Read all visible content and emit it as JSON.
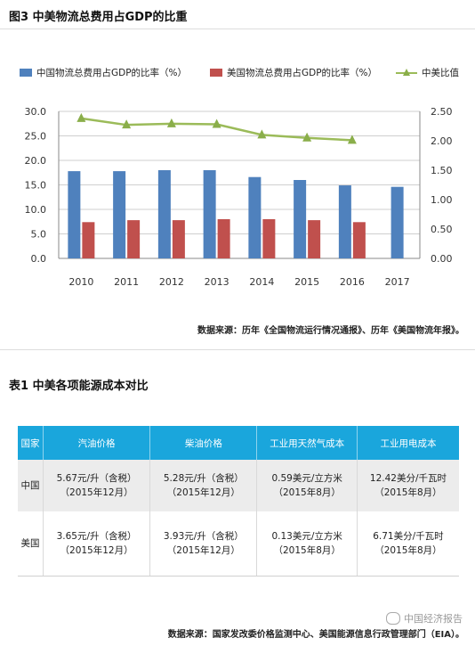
{
  "figure": {
    "title": "图3  中美物流总费用占GDP的比重"
  },
  "legend": {
    "china": "中国物流总费用占GDP的比率（%）",
    "usa": "美国物流总费用占GDP的比率（%）",
    "ratio": "中美比值"
  },
  "chart_data": {
    "type": "bar",
    "categories": [
      "2010",
      "2011",
      "2012",
      "2013",
      "2014",
      "2015",
      "2016",
      "2017"
    ],
    "series": [
      {
        "name": "中国物流总费用占GDP的比率（%）",
        "type": "bar",
        "axis": "left",
        "color": "#4f81bd",
        "values": [
          17.8,
          17.8,
          18.0,
          18.0,
          16.6,
          16.0,
          14.9,
          14.6
        ]
      },
      {
        "name": "美国物流总费用占GDP的比率（%）",
        "type": "bar",
        "axis": "left",
        "color": "#c0504d",
        "values": [
          7.4,
          7.8,
          7.8,
          8.0,
          8.0,
          7.8,
          7.4,
          null
        ]
      },
      {
        "name": "中美比值",
        "type": "line",
        "axis": "right",
        "color": "#9bbb59",
        "values": [
          2.38,
          2.27,
          2.29,
          2.28,
          2.1,
          2.05,
          2.01,
          null
        ]
      }
    ],
    "y_left": {
      "ylim": [
        0,
        30
      ],
      "ticks": [
        "0.0",
        "5.0",
        "10.0",
        "15.0",
        "20.0",
        "25.0",
        "30.0"
      ]
    },
    "y_right": {
      "ylim": [
        0,
        2.5
      ],
      "ticks": [
        "0.00",
        "0.50",
        "1.00",
        "1.50",
        "2.00",
        "2.50"
      ]
    },
    "grid": "horizontal",
    "legend_position": "top"
  },
  "figure_source": "数据来源：历年《全国物流运行情况通报》、历年《美国物流年报》。",
  "table": {
    "title": "表1  中美各项能源成本对比",
    "headers": [
      "国家",
      "汽油价格",
      "柴油价格",
      "工业用天然气成本",
      "工业用电成本"
    ],
    "rows": [
      {
        "country": "中国",
        "cells": [
          [
            "5.67元/升（含税）",
            "（2015年12月）"
          ],
          [
            "5.28元/升（含税）",
            "（2015年12月）"
          ],
          [
            "0.59美元/立方米",
            "（2015年8月）"
          ],
          [
            "12.42美分/千瓦时",
            "（2015年8月）"
          ]
        ]
      },
      {
        "country": "美国",
        "cells": [
          [
            "3.65元/升（含税）",
            "（2015年12月）"
          ],
          [
            "3.93元/升（含税）",
            "（2015年12月）"
          ],
          [
            "0.13美元/立方米",
            "（2015年8月）"
          ],
          [
            "6.71美分/千瓦时",
            "（2015年8月）"
          ]
        ]
      }
    ]
  },
  "table_source": "数据来源：国家发改委价格监测中心、美国能源信息行政管理部门（EIA）。",
  "watermark": "中国经济报告"
}
